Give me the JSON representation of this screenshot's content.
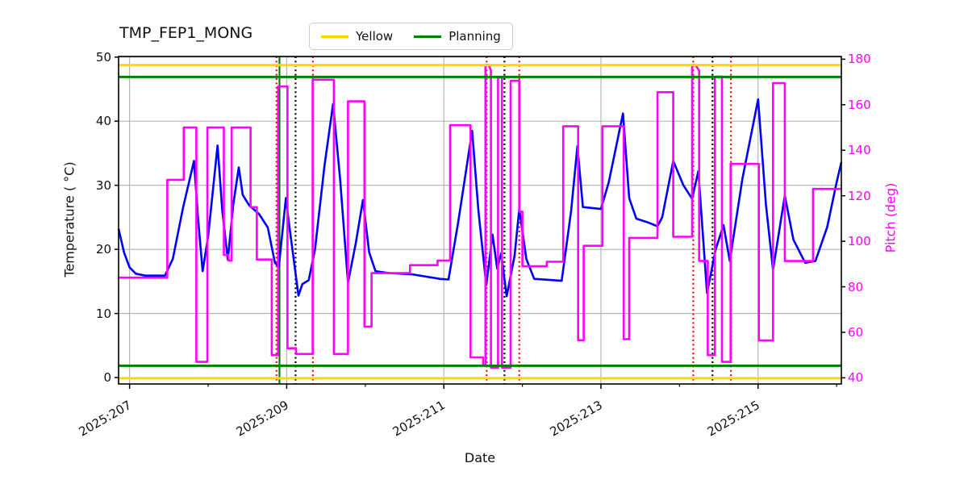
{
  "chart_data": {
    "type": "line",
    "title": "TMP_FEP1_MONG",
    "xlabel": "Date",
    "ylabel_left": "Temperature ( °C)",
    "ylabel_right": "Pitch (deg)",
    "x_unit": "year:day-of-year",
    "xlim": [
      206.86,
      216.06
    ],
    "left_lim": [
      -1.0,
      50.1
    ],
    "right_lim": [
      37.3,
      181.2
    ],
    "left_ticks": [
      0,
      10,
      20,
      30,
      40,
      50
    ],
    "right_ticks": [
      40,
      60,
      80,
      100,
      120,
      140,
      160,
      180
    ],
    "x_major": [
      {
        "day": 207,
        "label": "2025:207"
      },
      {
        "day": 209,
        "label": "2025:209"
      },
      {
        "day": 211,
        "label": "2025:211"
      },
      {
        "day": 213,
        "label": "2025:213"
      },
      {
        "day": 215,
        "label": "2025:215"
      }
    ],
    "x_minor_days": [
      208,
      210,
      212,
      214,
      216
    ],
    "grid_color": "#b0b0b0",
    "legend": [
      {
        "label": "Yellow",
        "color": "#ffd700"
      },
      {
        "label": "Planning",
        "color": "#008000"
      }
    ],
    "limit_lines": [
      {
        "name": "yellow-upper",
        "axis": "left",
        "value": 48.75,
        "color": "#ffd700"
      },
      {
        "name": "planning-upper",
        "axis": "left",
        "value": 46.9,
        "color": "#008000"
      },
      {
        "name": "planning-lower",
        "axis": "left",
        "value": 1.85,
        "color": "#008000"
      },
      {
        "name": "yellow-lower",
        "axis": "left",
        "value": -0.1,
        "color": "#ffd700"
      }
    ],
    "event_lines": [
      {
        "day": 208.87,
        "color": "#ff0000",
        "style": "dotted"
      },
      {
        "day": 208.908,
        "color": "#008000",
        "style": "solid"
      },
      {
        "day": 209.113,
        "color": "#000000",
        "style": "dotted"
      },
      {
        "day": 209.333,
        "color": "#ff0000",
        "style": "dotted"
      },
      {
        "day": 211.545,
        "color": "#ff0000",
        "style": "dotted"
      },
      {
        "day": 211.772,
        "color": "#000000",
        "style": "dotted"
      },
      {
        "day": 211.96,
        "color": "#ff0000",
        "style": "dotted"
      },
      {
        "day": 214.175,
        "color": "#ff0000",
        "style": "dotted"
      },
      {
        "day": 214.42,
        "color": "#000000",
        "style": "dotted"
      },
      {
        "day": 214.655,
        "color": "#ff0000",
        "style": "dotted"
      }
    ],
    "series": [
      {
        "name": "Temperature",
        "axis": "left",
        "color": "#0000ff",
        "points": [
          [
            206.86,
            23.2
          ],
          [
            206.93,
            19.5
          ],
          [
            207.0,
            17.2
          ],
          [
            207.08,
            16.2
          ],
          [
            207.2,
            15.9
          ],
          [
            207.45,
            15.9
          ],
          [
            207.55,
            18.5
          ],
          [
            207.68,
            26.5
          ],
          [
            207.82,
            33.8
          ],
          [
            207.87,
            25.0
          ],
          [
            207.93,
            16.6
          ],
          [
            208.0,
            22.0
          ],
          [
            208.12,
            36.2
          ],
          [
            208.18,
            26.0
          ],
          [
            208.25,
            18.4
          ],
          [
            208.32,
            27.0
          ],
          [
            208.39,
            32.8
          ],
          [
            208.44,
            28.5
          ],
          [
            208.52,
            26.9
          ],
          [
            208.65,
            25.5
          ],
          [
            208.76,
            23.4
          ],
          [
            208.85,
            17.9
          ],
          [
            208.9,
            17.3
          ],
          [
            208.99,
            28.0
          ],
          [
            209.03,
            24.0
          ],
          [
            209.15,
            12.8
          ],
          [
            209.2,
            14.6
          ],
          [
            209.28,
            15.2
          ],
          [
            209.36,
            20.0
          ],
          [
            209.48,
            33.0
          ],
          [
            209.59,
            42.7
          ],
          [
            209.68,
            31.0
          ],
          [
            209.78,
            14.8
          ],
          [
            209.88,
            21.0
          ],
          [
            209.97,
            27.7
          ],
          [
            210.05,
            19.5
          ],
          [
            210.13,
            16.6
          ],
          [
            210.3,
            16.3
          ],
          [
            210.6,
            16.1
          ],
          [
            210.95,
            15.4
          ],
          [
            211.06,
            15.3
          ],
          [
            211.18,
            24.0
          ],
          [
            211.36,
            38.5
          ],
          [
            211.44,
            26.0
          ],
          [
            211.54,
            14.4
          ],
          [
            211.62,
            22.3
          ],
          [
            211.68,
            17.0
          ],
          [
            211.73,
            19.4
          ],
          [
            211.8,
            12.7
          ],
          [
            211.9,
            19.0
          ],
          [
            211.96,
            26.3
          ],
          [
            212.05,
            18.5
          ],
          [
            212.15,
            15.4
          ],
          [
            212.5,
            15.1
          ],
          [
            212.62,
            26.0
          ],
          [
            212.7,
            36.1
          ],
          [
            212.77,
            26.6
          ],
          [
            213.0,
            26.3
          ],
          [
            213.1,
            30.5
          ],
          [
            213.28,
            41.2
          ],
          [
            213.36,
            28.0
          ],
          [
            213.45,
            24.8
          ],
          [
            213.6,
            24.2
          ],
          [
            213.72,
            23.6
          ],
          [
            213.78,
            25.0
          ],
          [
            213.92,
            33.8
          ],
          [
            214.05,
            30.0
          ],
          [
            214.16,
            27.9
          ],
          [
            214.24,
            32.2
          ],
          [
            214.35,
            13.2
          ],
          [
            214.46,
            20.0
          ],
          [
            214.56,
            23.8
          ],
          [
            214.64,
            18.2
          ],
          [
            214.8,
            31.0
          ],
          [
            215.0,
            43.4
          ],
          [
            215.1,
            27.0
          ],
          [
            215.19,
            16.8
          ],
          [
            215.34,
            28.4
          ],
          [
            215.45,
            21.5
          ],
          [
            215.6,
            17.9
          ],
          [
            215.73,
            18.2
          ],
          [
            215.88,
            23.5
          ],
          [
            216.0,
            30.5
          ],
          [
            216.06,
            33.6
          ]
        ]
      },
      {
        "name": "Pitch",
        "axis": "right",
        "color": "#ff00ff",
        "points": [
          [
            206.86,
            84
          ],
          [
            207.48,
            84
          ],
          [
            207.48,
            127
          ],
          [
            207.69,
            127
          ],
          [
            207.69,
            150
          ],
          [
            207.85,
            150
          ],
          [
            207.85,
            47
          ],
          [
            207.99,
            47
          ],
          [
            207.99,
            150
          ],
          [
            208.2,
            150
          ],
          [
            208.2,
            94
          ],
          [
            208.26,
            94
          ],
          [
            208.26,
            91.5
          ],
          [
            208.3,
            91.5
          ],
          [
            208.3,
            150
          ],
          [
            208.54,
            150
          ],
          [
            208.54,
            115
          ],
          [
            208.62,
            115
          ],
          [
            208.62,
            92
          ],
          [
            208.81,
            92
          ],
          [
            208.81,
            50
          ],
          [
            208.89,
            50
          ],
          [
            208.89,
            168
          ],
          [
            209.01,
            168
          ],
          [
            209.01,
            53
          ],
          [
            209.12,
            53
          ],
          [
            209.12,
            50.5
          ],
          [
            209.33,
            50.5
          ],
          [
            209.33,
            171
          ],
          [
            209.6,
            171
          ],
          [
            209.6,
            50.5
          ],
          [
            209.78,
            50.5
          ],
          [
            209.78,
            161.5
          ],
          [
            209.99,
            161.5
          ],
          [
            209.99,
            62.5
          ],
          [
            210.08,
            62.5
          ],
          [
            210.08,
            86
          ],
          [
            210.57,
            86
          ],
          [
            210.57,
            89.5
          ],
          [
            210.92,
            89.5
          ],
          [
            210.92,
            91.5
          ],
          [
            211.08,
            91.5
          ],
          [
            211.08,
            151
          ],
          [
            211.34,
            151
          ],
          [
            211.34,
            49
          ],
          [
            211.5,
            49
          ],
          [
            211.5,
            45.5
          ],
          [
            211.53,
            45.5
          ],
          [
            211.53,
            177.5
          ],
          [
            211.57,
            177.5
          ],
          [
            211.6,
            175
          ],
          [
            211.6,
            44.5
          ],
          [
            211.69,
            44.5
          ],
          [
            211.69,
            172
          ],
          [
            211.74,
            172
          ],
          [
            211.74,
            44.5
          ],
          [
            211.85,
            44.5
          ],
          [
            211.85,
            170.5
          ],
          [
            211.96,
            170.5
          ],
          [
            211.96,
            113
          ],
          [
            212.0,
            113
          ],
          [
            212.0,
            89
          ],
          [
            212.31,
            89
          ],
          [
            212.31,
            91
          ],
          [
            212.52,
            91
          ],
          [
            212.52,
            150.5
          ],
          [
            212.71,
            150.5
          ],
          [
            212.71,
            56.5
          ],
          [
            212.78,
            56.5
          ],
          [
            212.78,
            98
          ],
          [
            213.02,
            98
          ],
          [
            213.02,
            150.5
          ],
          [
            213.29,
            150.5
          ],
          [
            213.29,
            57
          ],
          [
            213.36,
            57
          ],
          [
            213.36,
            101.5
          ],
          [
            213.72,
            101.5
          ],
          [
            213.72,
            165.5
          ],
          [
            213.92,
            165.5
          ],
          [
            213.92,
            102
          ],
          [
            214.16,
            102
          ],
          [
            214.16,
            177.5
          ],
          [
            214.2,
            177.5
          ],
          [
            214.25,
            175
          ],
          [
            214.25,
            91.4
          ],
          [
            214.36,
            91.4
          ],
          [
            214.36,
            50
          ],
          [
            214.45,
            50
          ],
          [
            214.45,
            172.3
          ],
          [
            214.54,
            172.3
          ],
          [
            214.54,
            47
          ],
          [
            214.65,
            47
          ],
          [
            214.65,
            134
          ],
          [
            215.01,
            134
          ],
          [
            215.01,
            56.4
          ],
          [
            215.19,
            56.4
          ],
          [
            215.19,
            169.5
          ],
          [
            215.34,
            169.5
          ],
          [
            215.34,
            91.3
          ],
          [
            215.7,
            91.3
          ],
          [
            215.7,
            123
          ],
          [
            216.06,
            123
          ]
        ]
      }
    ]
  }
}
